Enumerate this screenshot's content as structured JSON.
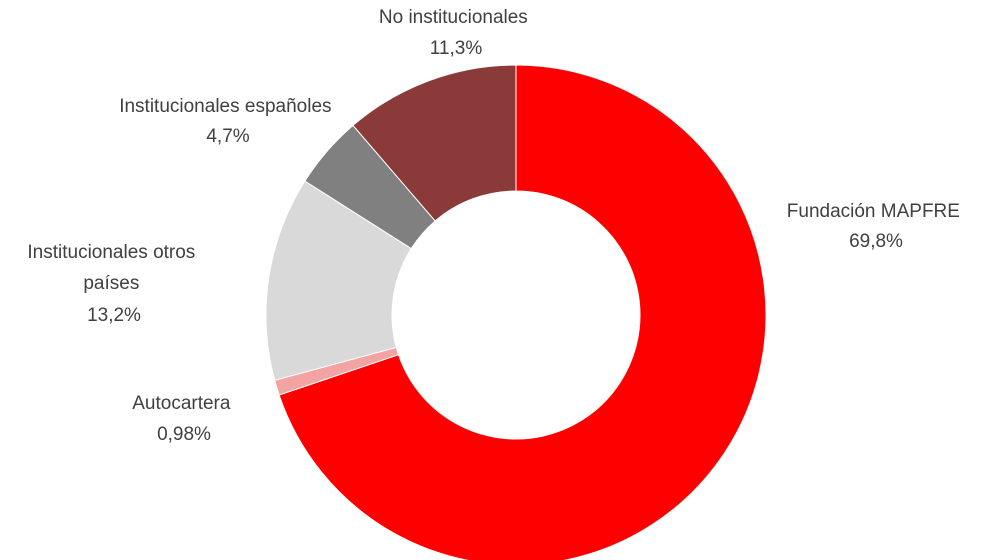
{
  "chart_data": {
    "type": "pie",
    "variant": "donut",
    "title": "",
    "slices": [
      {
        "name": "Fundación MAPFRE",
        "value": 69.8,
        "value_label": "69,8%",
        "color": "#ff0000"
      },
      {
        "name": "Autocartera",
        "value": 0.98,
        "value_label": "0,98%",
        "color": "#f4a3a3"
      },
      {
        "name": "Institucionales otros países",
        "value": 13.2,
        "value_label": "13,2%",
        "color": "#d9d9d9"
      },
      {
        "name": "Institucionales españoles",
        "value": 4.7,
        "value_label": "4,7%",
        "color": "#808080"
      },
      {
        "name": "No institucionales",
        "value": 11.3,
        "value_label": "11,3%",
        "color": "#8b3a3a"
      }
    ],
    "start_angle_deg": 0,
    "direction": "clockwise",
    "legend": "none"
  }
}
